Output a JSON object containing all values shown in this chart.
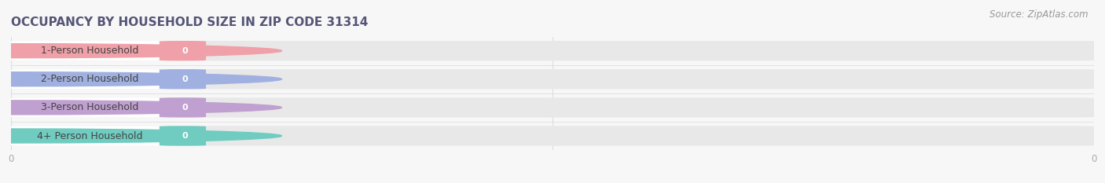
{
  "title": "OCCUPANCY BY HOUSEHOLD SIZE IN ZIP CODE 31314",
  "source": "Source: ZipAtlas.com",
  "categories": [
    "1-Person Household",
    "2-Person Household",
    "3-Person Household",
    "4+ Person Household"
  ],
  "values": [
    0,
    0,
    0,
    0
  ],
  "bar_colors": [
    "#f0a0a8",
    "#a0b0e0",
    "#c0a0d0",
    "#70ccc0"
  ],
  "background_color": "#f7f7f7",
  "bar_bg_color": "#e8e8e8",
  "white_pill_color": "#ffffff",
  "title_color": "#555577",
  "label_text_color": "#444444",
  "value_text_color": "#ffffff",
  "source_color": "#999999",
  "axis_tick_color": "#aaaaaa",
  "grid_color": "#dddddd",
  "title_fontsize": 11,
  "label_fontsize": 9,
  "value_fontsize": 8,
  "source_fontsize": 8.5
}
